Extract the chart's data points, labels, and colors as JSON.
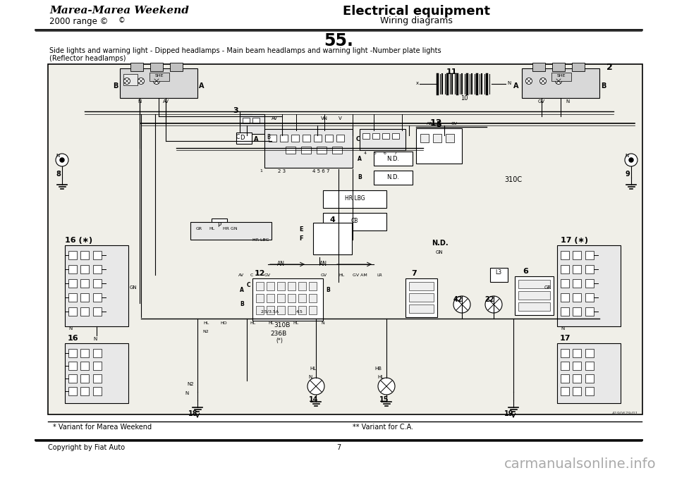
{
  "title_left_line1": "Marea-Marea Weekend",
  "title_left_line2": "2000 range ©",
  "title_right_line1": "Electrical equipment",
  "title_right_line2": "Wiring diagrams",
  "section_number": "55.",
  "subtitle": "Side lights and warning light - Dipped headlamps - Main beam headlamps and warning light -Number plate lights",
  "subtitle2": "(Reflector headlamps)",
  "footer_left": "* Variant for Marea Weekend",
  "footer_center": "** Variant for C.A.",
  "copyright": "Copyright by Fiat Auto",
  "page_number": "7",
  "watermark": "carmanualsonline.info",
  "bg_color": "#ffffff",
  "diagram_bg": "#f0efe8",
  "border_color": "#000000",
  "text_color": "#000000",
  "diagram_ref": "4190679/01"
}
